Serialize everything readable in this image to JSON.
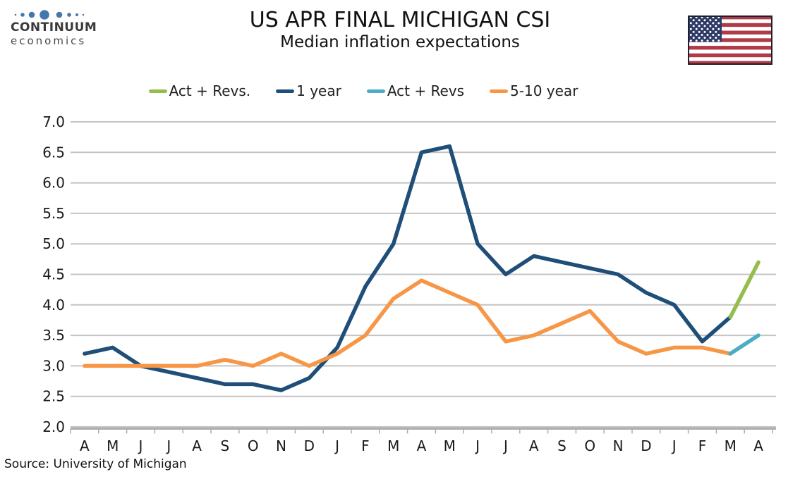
{
  "header": {
    "logo": {
      "brand": "CONTINUUM",
      "sub": "economics",
      "dot_color": "#4478AD"
    },
    "title": "US APR FINAL MICHIGAN CSI",
    "subtitle": "Median inflation expectations",
    "flag_icon": "us-flag"
  },
  "source": "Source: University of Michigan",
  "colors": {
    "grid": "#C4C4C4",
    "axis": "#ADADAD",
    "label": "#1A1A1A",
    "flag_red": "#B03B47",
    "flag_blue": "#2E3A66",
    "flag_border": "#20202E"
  },
  "chart_data": {
    "type": "line",
    "title": "US APR FINAL MICHIGAN CSI",
    "subtitle": "Median inflation expectations",
    "xlabel": "",
    "ylabel": "",
    "ylim": [
      2.0,
      7.0
    ],
    "ytick_step": 0.5,
    "grid": true,
    "legend_position": "top",
    "categories": [
      "A",
      "M",
      "J",
      "J",
      "A",
      "S",
      "O",
      "N",
      "D",
      "J",
      "F",
      "M",
      "A",
      "M",
      "J",
      "J",
      "A",
      "S",
      "O",
      "N",
      "D",
      "J",
      "F",
      "M",
      "A"
    ],
    "series": [
      {
        "name": "Act + Revs.",
        "color": "#94BD4D",
        "values": [
          null,
          null,
          null,
          null,
          null,
          null,
          null,
          null,
          null,
          null,
          null,
          null,
          null,
          null,
          null,
          null,
          null,
          null,
          null,
          null,
          null,
          null,
          null,
          3.8,
          4.7
        ]
      },
      {
        "name": "1 year",
        "color": "#1F4E79",
        "values": [
          3.2,
          3.3,
          3.0,
          2.9,
          2.8,
          2.7,
          2.7,
          2.6,
          2.8,
          3.3,
          4.3,
          5.0,
          6.5,
          6.6,
          5.0,
          4.5,
          4.8,
          4.7,
          4.6,
          4.5,
          4.2,
          4.0,
          3.4,
          3.8,
          null
        ]
      },
      {
        "name": "Act + Revs",
        "color": "#4BACC6",
        "values": [
          null,
          null,
          null,
          null,
          null,
          null,
          null,
          null,
          null,
          null,
          null,
          null,
          null,
          null,
          null,
          null,
          null,
          null,
          null,
          null,
          null,
          null,
          null,
          3.2,
          3.5
        ]
      },
      {
        "name": "5-10 year",
        "color": "#F79646",
        "values": [
          3.0,
          3.0,
          3.0,
          3.0,
          3.0,
          3.1,
          3.0,
          3.2,
          3.0,
          3.2,
          3.5,
          4.1,
          4.4,
          4.2,
          4.0,
          3.4,
          3.5,
          3.7,
          3.9,
          3.4,
          3.2,
          3.3,
          3.3,
          3.2,
          null
        ]
      }
    ]
  }
}
